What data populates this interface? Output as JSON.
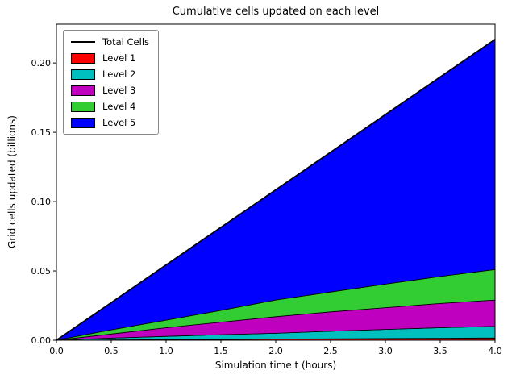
{
  "figure": {
    "title": "Cumulative cells updated on each level",
    "xlabel": "Simulation time t (hours)",
    "ylabel": "Grid cells updated (billions)",
    "background": "#ffffff"
  },
  "legend": {
    "position": "upper left",
    "entries": [
      {
        "label": "Total Cells",
        "swatch": "line",
        "color": "#000000"
      },
      {
        "label": "Level 1",
        "swatch": "patch",
        "color": "#ff0000"
      },
      {
        "label": "Level 2",
        "swatch": "patch",
        "color": "#00bfbf"
      },
      {
        "label": "Level 3",
        "swatch": "patch",
        "color": "#bf00bf"
      },
      {
        "label": "Level 4",
        "swatch": "patch",
        "color": "#32cd32"
      },
      {
        "label": "Level 5",
        "swatch": "patch",
        "color": "#0000ff"
      }
    ]
  },
  "chart_data": {
    "type": "area",
    "stacked": true,
    "title": "Cumulative cells updated on each level",
    "xlabel": "Simulation time t (hours)",
    "ylabel": "Grid cells updated (billions)",
    "grid": false,
    "legend_position": "upper left",
    "xlim": [
      0,
      4
    ],
    "ylim": [
      0,
      0.228
    ],
    "x": [
      0,
      0.5,
      1.0,
      1.5,
      2.0,
      2.5,
      3.0,
      3.5,
      4.0
    ],
    "xticks": [
      0,
      0.5,
      1.0,
      1.5,
      2.0,
      2.5,
      3.0,
      3.5,
      4.0
    ],
    "xtick_labels": [
      "0.0",
      "0.5",
      "1.0",
      "1.5",
      "2.0",
      "2.5",
      "3.0",
      "3.5",
      "4.0"
    ],
    "yticks": [
      0,
      0.05,
      0.1,
      0.15,
      0.2
    ],
    "ytick_labels": [
      "0.00",
      "0.05",
      "0.10",
      "0.15",
      "0.20"
    ],
    "series": [
      {
        "name": "Level 1",
        "color": "#ff0000",
        "values": [
          0,
          0.0002,
          0.0004,
          0.0006,
          0.0008,
          0.001,
          0.0012,
          0.0014,
          0.0016
        ]
      },
      {
        "name": "Level 2",
        "color": "#00bfbf",
        "values": [
          0,
          0.0013,
          0.0024,
          0.0034,
          0.0042,
          0.0055,
          0.0066,
          0.0076,
          0.0084
        ]
      },
      {
        "name": "Level 3",
        "color": "#bf00bf",
        "values": [
          0,
          0.003,
          0.0062,
          0.009,
          0.012,
          0.014,
          0.0157,
          0.0175,
          0.019
        ]
      },
      {
        "name": "Level 4",
        "color": "#32cd32",
        "values": [
          0,
          0.003,
          0.0055,
          0.0085,
          0.012,
          0.0143,
          0.017,
          0.0195,
          0.022
        ]
      },
      {
        "name": "Level 5",
        "color": "#0000ff",
        "values": [
          0,
          0.0196,
          0.0398,
          0.0599,
          0.0795,
          0.1008,
          0.1223,
          0.1439,
          0.166
        ]
      }
    ],
    "total_line": {
      "name": "Total Cells",
      "color": "#000000",
      "values": [
        0,
        0.0271,
        0.0543,
        0.0814,
        0.1085,
        0.1356,
        0.1628,
        0.1899,
        0.217
      ]
    }
  }
}
